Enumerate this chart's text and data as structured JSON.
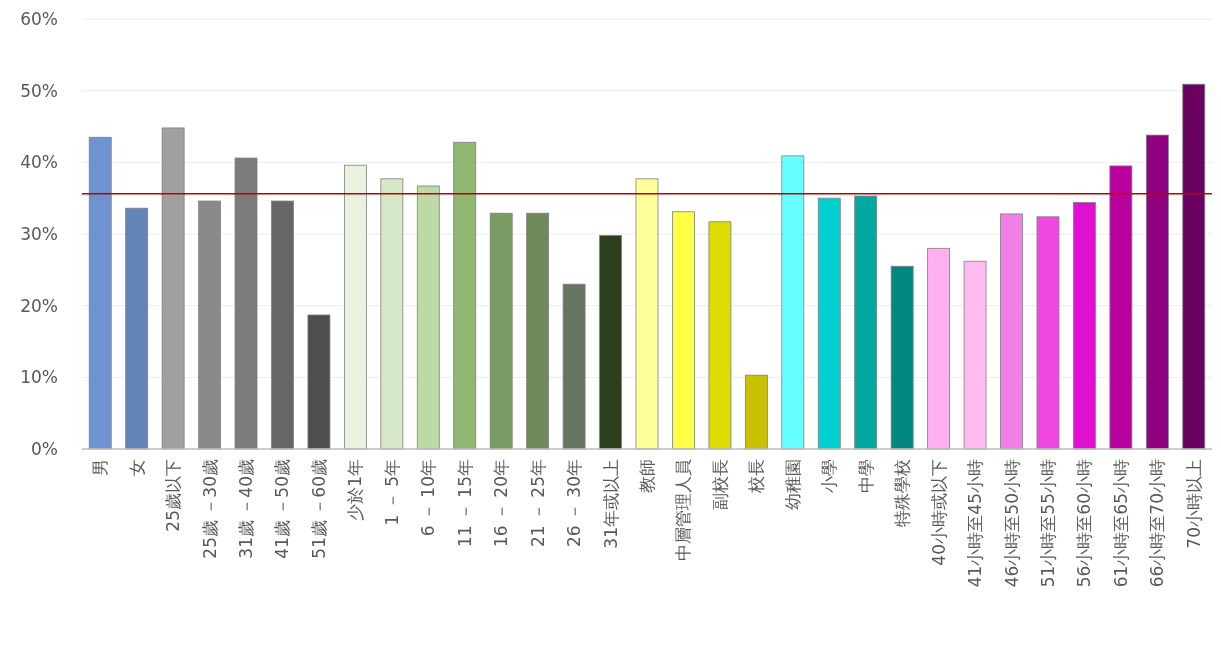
{
  "chart_data": {
    "type": "bar",
    "categories": [
      "男",
      "女",
      "25歲以下",
      "25歲 －30歲",
      "31歲 －40歲",
      "41歲 －50歲",
      "51歲 －60歲",
      "少於1年",
      "1 － 5年",
      "6 － 10年",
      "11 － 15年",
      "16 － 20年",
      "21 － 25年",
      "26 － 30年",
      "31年或以上",
      "教師",
      "中層管理人員",
      "副校長",
      "校長",
      "幼稚園",
      "小學",
      "中學",
      "特殊學校",
      "40小時或以下",
      "41小時至45小時",
      "46小時至50小時",
      "51小時至55小時",
      "56小時至60小時",
      "61小時至65小時",
      "66小時至70小時",
      "70小時以上"
    ],
    "values": [
      43.5,
      33.6,
      44.8,
      34.6,
      40.6,
      34.6,
      18.7,
      39.6,
      37.7,
      36.7,
      42.8,
      32.9,
      32.9,
      23.0,
      29.8,
      37.7,
      33.1,
      31.7,
      10.3,
      40.9,
      35.0,
      35.3,
      25.5,
      28.0,
      26.2,
      32.8,
      32.4,
      34.4,
      39.5,
      43.8,
      50.9
    ],
    "colors": [
      "#6f93d0",
      "#6384b8",
      "#a0a0a0",
      "#8a8a8a",
      "#7b7b7b",
      "#676767",
      "#4e4e4e",
      "#e8f2df",
      "#d6e8c8",
      "#bcd9a6",
      "#8fb772",
      "#7a9c63",
      "#6e8a5a",
      "#677560",
      "#2c401e",
      "#ffff99",
      "#ffff44",
      "#dddd00",
      "#c8c000",
      "#66ffff",
      "#00d0d0",
      "#00a8a0",
      "#008880",
      "#ffb0f0",
      "#ffbaf0",
      "#f080e8",
      "#f048e0",
      "#e010d0",
      "#b8009e",
      "#900080",
      "#6a0060"
    ],
    "ylim": [
      0,
      60
    ],
    "yticks": [
      {
        "value": 0,
        "label": "0%"
      },
      {
        "value": 10,
        "label": "10%"
      },
      {
        "value": 20,
        "label": "20%"
      },
      {
        "value": 30,
        "label": "30%"
      },
      {
        "value": 40,
        "label": "40%"
      },
      {
        "value": 50,
        "label": "50%"
      },
      {
        "value": 60,
        "label": "60%"
      }
    ],
    "grid": "y",
    "ref_lines": [
      {
        "axis": "y",
        "value": 35.6,
        "color": "#c00000"
      }
    ]
  }
}
